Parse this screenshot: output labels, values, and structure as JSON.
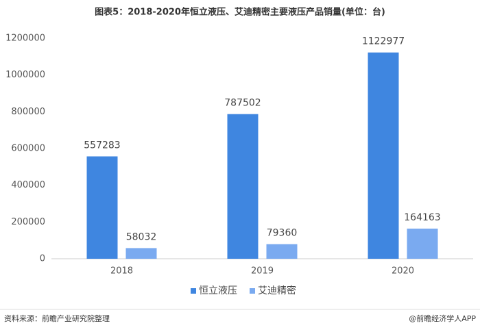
{
  "chart_data": {
    "type": "bar",
    "title": "图表5：2018-2020年恒立液压、艾迪精密主要液压产品销量(单位：台)",
    "categories": [
      "2018",
      "2019",
      "2020"
    ],
    "series": [
      {
        "name": "恒立液压",
        "color": "#3f86e0",
        "values": [
          557283,
          787502,
          1122977
        ]
      },
      {
        "name": "艾迪精密",
        "color": "#7aaaf0",
        "values": [
          58032,
          79360,
          164163
        ]
      }
    ],
    "ylim": [
      0,
      1200000
    ],
    "yticks": [
      0,
      200000,
      400000,
      600000,
      800000,
      1000000,
      1200000
    ],
    "grid": false,
    "legend": "bottom",
    "source": "资料来源：前瞻产业研究院整理",
    "credit": "@前瞻经济学人APP"
  }
}
